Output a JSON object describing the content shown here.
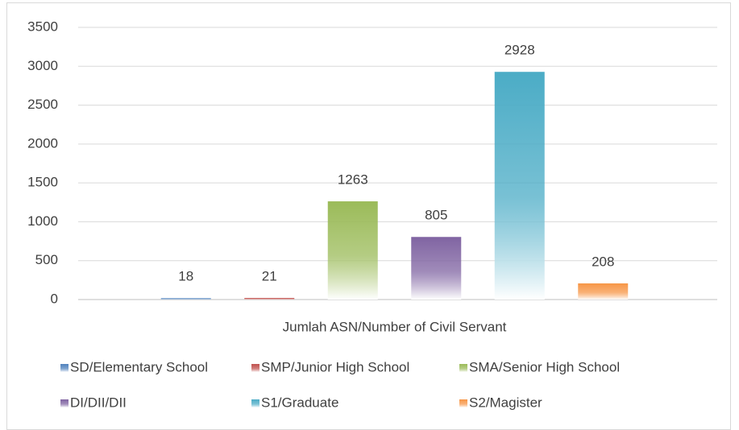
{
  "chart_data": {
    "type": "bar",
    "categories": [
      "Jumlah ASN/Number of Civil Servant"
    ],
    "series": [
      {
        "name": "SD/Elementary School",
        "color": "#4f81bd",
        "values": [
          18
        ]
      },
      {
        "name": "SMP/Junior High School",
        "color": "#c0504d",
        "values": [
          21
        ]
      },
      {
        "name": "SMA/Senior High School",
        "color": "#9bbb59",
        "values": [
          1263
        ]
      },
      {
        "name": "DI/DII/DII",
        "color": "#8064a2",
        "values": [
          805
        ]
      },
      {
        "name": "S1/Graduate",
        "color": "#4bacc6",
        "values": [
          2928
        ]
      },
      {
        "name": "S2/Magister",
        "color": "#f79646",
        "values": [
          208
        ]
      }
    ],
    "ylim": [
      0,
      3500
    ],
    "yticks": [
      0,
      500,
      1000,
      1500,
      2000,
      2500,
      3000,
      3500
    ],
    "grid": true,
    "legend": "bottom"
  }
}
